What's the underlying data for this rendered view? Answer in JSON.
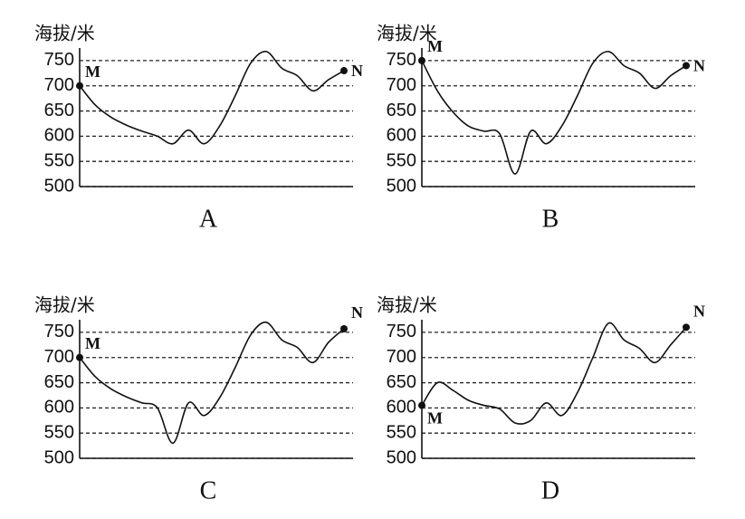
{
  "chart_data": [
    {
      "type": "line",
      "title": "海拔/米",
      "label": "A",
      "annotations": [
        "M",
        "N"
      ],
      "categories": [
        null,
        null,
        null,
        null,
        null,
        null,
        null,
        null,
        null,
        null,
        null,
        null,
        null,
        null,
        null,
        null,
        null,
        null
      ],
      "values": [
        700,
        662,
        638,
        622,
        610,
        600,
        585,
        612,
        585,
        620,
        680,
        745,
        768,
        735,
        720,
        690,
        712,
        730
      ],
      "color": "#111111",
      "ylim": [
        500,
        775
      ],
      "yticks": [
        500,
        550,
        600,
        650,
        700,
        750
      ],
      "grid": "dashed"
    },
    {
      "type": "line",
      "title": "海拔/米",
      "label": "B",
      "annotations": [
        "M",
        "N"
      ],
      "categories": [
        null,
        null,
        null,
        null,
        null,
        null,
        null,
        null,
        null,
        null,
        null,
        null,
        null,
        null,
        null,
        null,
        null,
        null
      ],
      "values": [
        750,
        690,
        648,
        620,
        610,
        605,
        525,
        610,
        585,
        620,
        680,
        745,
        768,
        740,
        725,
        695,
        720,
        740
      ],
      "color": "#111111",
      "ylim": [
        500,
        775
      ],
      "yticks": [
        500,
        550,
        600,
        650,
        700,
        750
      ],
      "grid": "dashed"
    },
    {
      "type": "line",
      "title": "海拔/米",
      "label": "C",
      "annotations": [
        "M",
        "N"
      ],
      "categories": [
        null,
        null,
        null,
        null,
        null,
        null,
        null,
        null,
        null,
        null,
        null,
        null,
        null,
        null,
        null,
        null,
        null,
        null
      ],
      "values": [
        700,
        662,
        638,
        622,
        610,
        600,
        530,
        610,
        585,
        620,
        680,
        745,
        770,
        735,
        720,
        690,
        730,
        757
      ],
      "color": "#111111",
      "ylim": [
        500,
        775
      ],
      "yticks": [
        500,
        550,
        600,
        650,
        700,
        750
      ],
      "grid": "dashed"
    },
    {
      "type": "line",
      "title": "海拔/米",
      "label": "D",
      "annotations": [
        "M",
        "N"
      ],
      "categories": [
        null,
        null,
        null,
        null,
        null,
        null,
        null,
        null,
        null,
        null,
        null,
        null,
        null,
        null,
        null,
        null,
        null,
        null
      ],
      "values": [
        605,
        650,
        635,
        615,
        605,
        598,
        570,
        575,
        610,
        585,
        630,
        700,
        768,
        735,
        718,
        690,
        725,
        760
      ],
      "color": "#111111",
      "ylim": [
        500,
        775
      ],
      "yticks": [
        500,
        550,
        600,
        650,
        700,
        750
      ],
      "grid": "dashed"
    }
  ]
}
